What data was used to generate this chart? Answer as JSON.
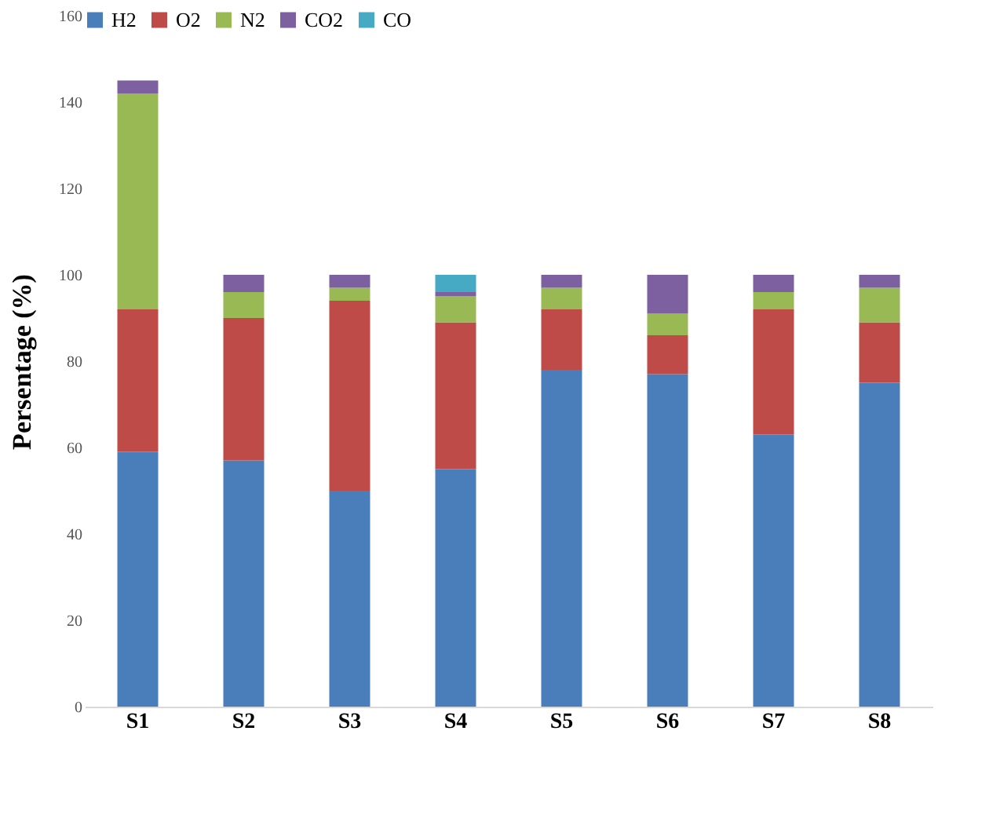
{
  "chart_data": {
    "type": "bar",
    "stacked": true,
    "ylabel": "Persentage (%)",
    "categories": [
      "S1",
      "S2",
      "S3",
      "S4",
      "S5",
      "S6",
      "S7",
      "S8"
    ],
    "series": [
      {
        "name": "H2",
        "color": "#4a7ebb",
        "values": [
          59,
          57,
          50,
          55,
          78,
          77,
          63,
          75
        ]
      },
      {
        "name": "O2",
        "color": "#be4b48",
        "values": [
          33,
          33,
          44,
          34,
          14,
          9,
          29,
          14
        ]
      },
      {
        "name": "N2",
        "color": "#98b954",
        "values": [
          50,
          6,
          3,
          6,
          5,
          5,
          4,
          8
        ]
      },
      {
        "name": "CO2",
        "color": "#7d60a0",
        "values": [
          3,
          4,
          3,
          1,
          3,
          9,
          4,
          3
        ]
      },
      {
        "name": "CO",
        "color": "#46aac5",
        "values": [
          0,
          0,
          0,
          4,
          0,
          0,
          0,
          0
        ]
      }
    ],
    "ylim": [
      0,
      160
    ],
    "yticks": [
      0,
      20,
      40,
      60,
      80,
      100,
      120,
      140,
      160
    ],
    "grid": false,
    "legend": "top"
  }
}
